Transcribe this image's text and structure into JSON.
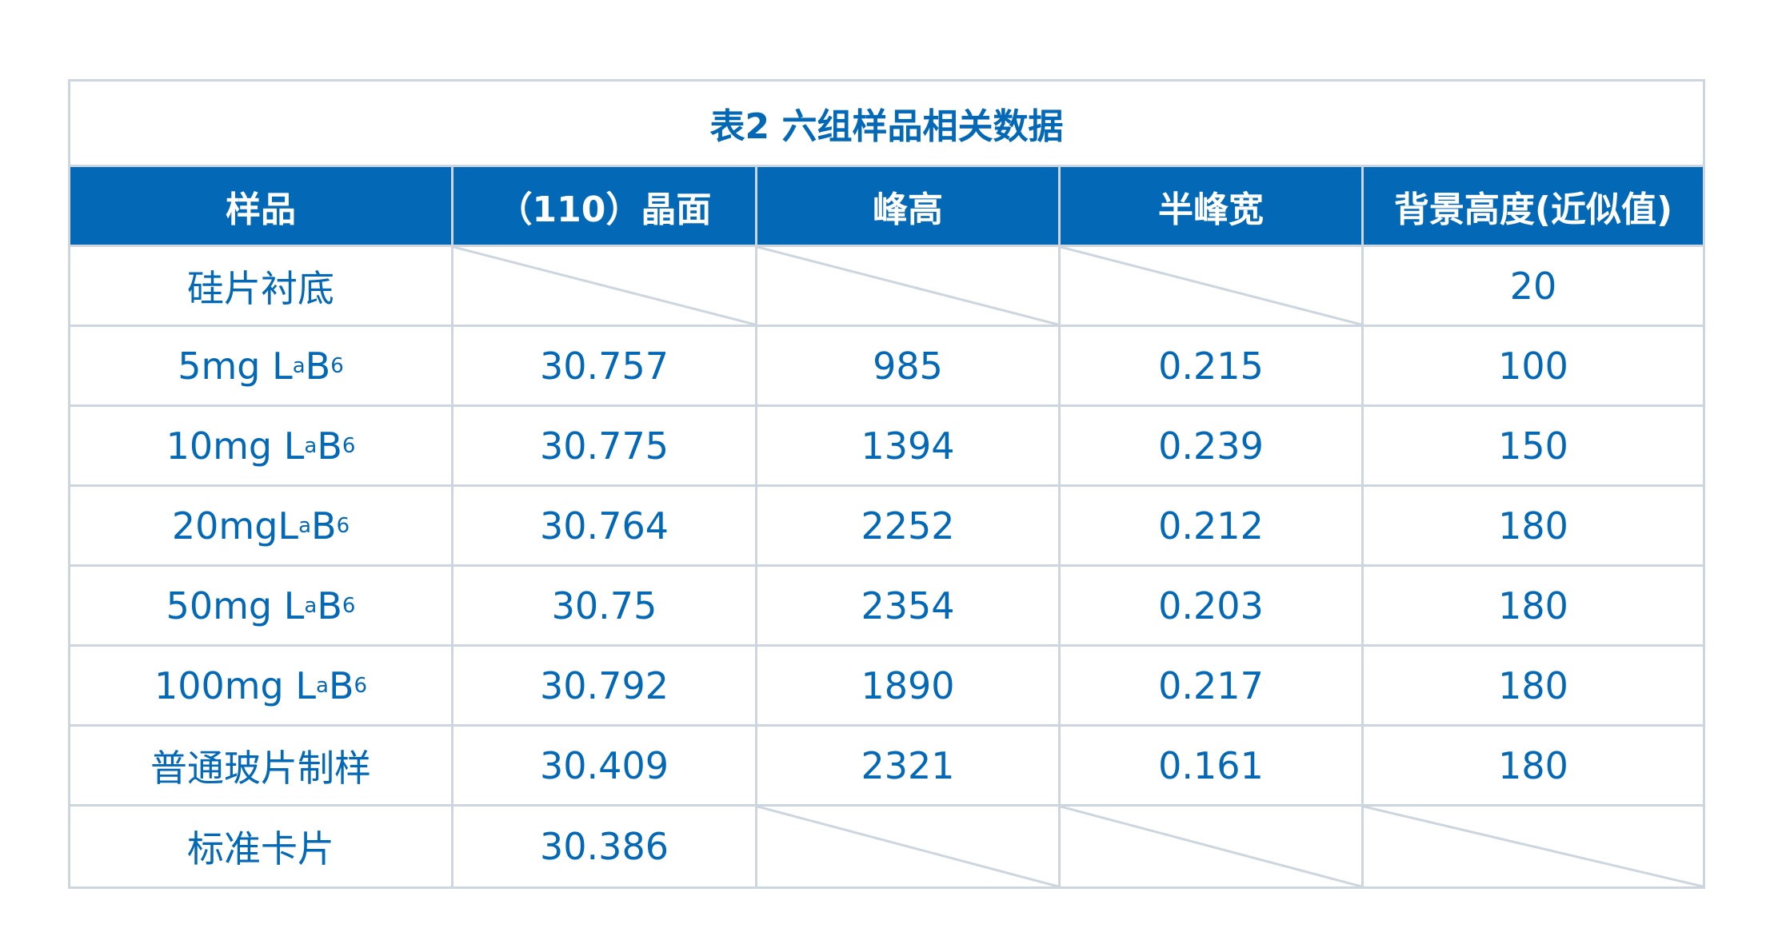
{
  "title": "表2 六组样品相关数据",
  "headers": [
    "样品",
    "（110）晶面",
    "峰高",
    "半峰宽",
    "背景高度(近似值)"
  ],
  "rows": [
    {
      "sample": {
        "prefix": "硅片衬底"
      },
      "cells": [
        null,
        null,
        null,
        "20"
      ]
    },
    {
      "sample": {
        "prefix": "5mg L",
        "sub1": "a",
        "mid": "B",
        "sub2": "6"
      },
      "cells": [
        "30.757",
        "985",
        "0.215",
        "100"
      ]
    },
    {
      "sample": {
        "prefix": "10mg L",
        "sub1": "a",
        "mid": "B",
        "sub2": "6"
      },
      "cells": [
        "30.775",
        "1394",
        "0.239",
        "150"
      ]
    },
    {
      "sample": {
        "prefix": "20mgL",
        "sub1": "a",
        "mid": "B",
        "sub2": "6"
      },
      "cells": [
        "30.764",
        "2252",
        "0.212",
        "180"
      ]
    },
    {
      "sample": {
        "prefix": "50mg L",
        "sub1": "a",
        "mid": "B",
        "sub2": "6"
      },
      "cells": [
        "30.75",
        "2354",
        "0.203",
        "180"
      ]
    },
    {
      "sample": {
        "prefix": "100mg L",
        "sub1": "a",
        "mid": "B",
        "sub2": "6"
      },
      "cells": [
        "30.792",
        "1890",
        "0.217",
        "180"
      ]
    },
    {
      "sample": {
        "prefix": "普通玻片制样"
      },
      "cells": [
        "30.409",
        "2321",
        "0.161",
        "180"
      ]
    },
    {
      "sample": {
        "prefix": "标准卡片"
      },
      "cells": [
        "30.386",
        null,
        null,
        null
      ]
    }
  ],
  "colors": {
    "accent": "#0368b5",
    "border": "#cdd6df"
  }
}
